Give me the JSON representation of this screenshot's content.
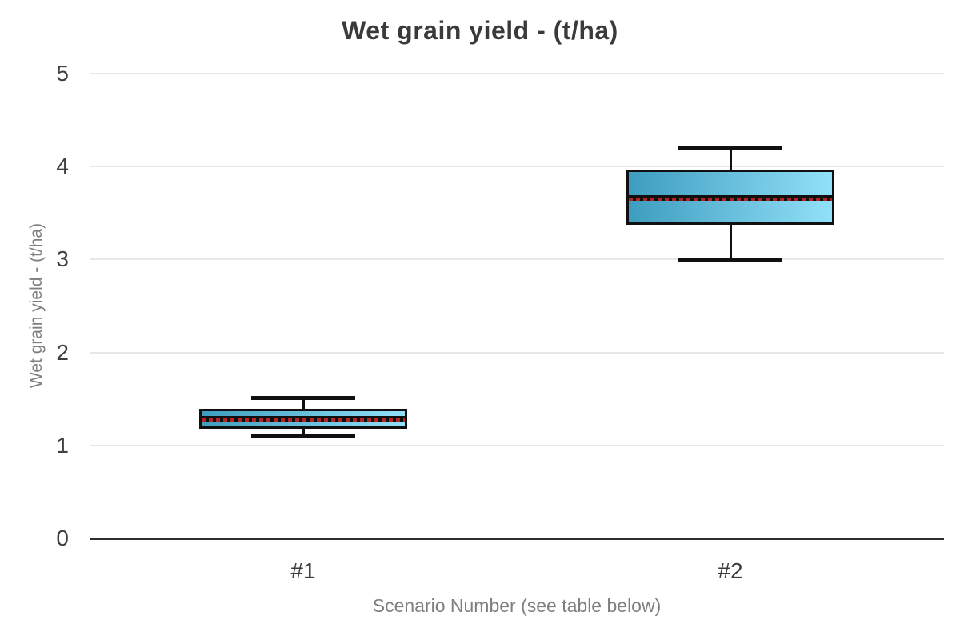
{
  "chart_data": {
    "type": "boxplot",
    "title": "Wet grain yield - (t/ha)",
    "xlabel": "Scenario Number (see table below)",
    "ylabel": "Wet grain yield - (t/ha)",
    "ylim": [
      0,
      5
    ],
    "yticks": [
      0,
      1,
      2,
      3,
      4,
      5
    ],
    "categories": [
      "#1",
      "#2"
    ],
    "series": [
      {
        "category": "#1",
        "min": 1.1,
        "q1": 1.18,
        "median": 1.29,
        "mean": 1.29,
        "q3": 1.39,
        "max": 1.51
      },
      {
        "category": "#2",
        "min": 3.0,
        "q1": 3.37,
        "median": 3.67,
        "mean": 3.67,
        "q3": 3.97,
        "max": 4.2
      }
    ],
    "grid": true,
    "legend": "none",
    "colors": {
      "box_fill_start": "#3e9dbf",
      "box_fill_end": "#91e0f8",
      "box_border": "#101010",
      "whisker": "#101010",
      "median_line": "#101010",
      "mean_dash": "#b32424",
      "gridline": "#e7e7e7",
      "axis_line": "#2e2e2e",
      "title_color": "#3a3a3a",
      "tick_label_color": "#3f3f3f",
      "axis_title_color": "#7f7f7f"
    }
  }
}
